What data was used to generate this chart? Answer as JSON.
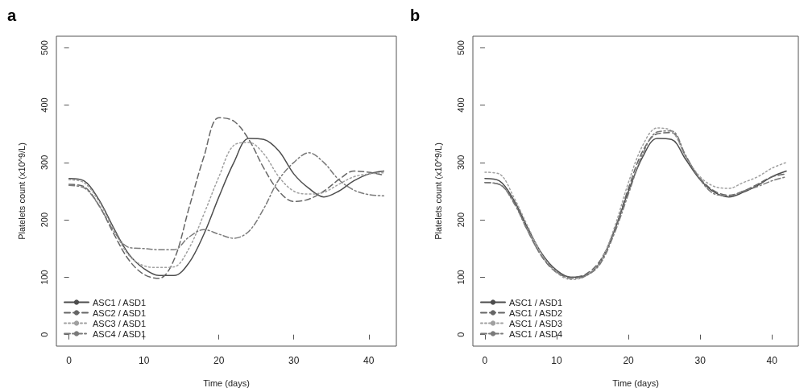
{
  "chart_data": [
    {
      "type": "line",
      "title": "a",
      "xlabel": "Time (days)",
      "ylabel": "Platelets count (x10^9/L)",
      "x": [
        0,
        2,
        4,
        6,
        8,
        10,
        12,
        14,
        16,
        18,
        20,
        22,
        24,
        26,
        28,
        30,
        32,
        34,
        36,
        38,
        40,
        42
      ],
      "xlim": [
        -1.68,
        43.68
      ],
      "xticks": [
        0,
        10,
        20,
        30,
        40
      ],
      "ylim": [
        -20,
        520
      ],
      "yticks": [
        0,
        100,
        200,
        300,
        400,
        500
      ],
      "grid": false,
      "legend": "bottom left",
      "marker": "none",
      "series": [
        {
          "name": "ASC1 / ASD1",
          "color": "#4d4d4d",
          "line_style": "solid",
          "values": [
            272,
            268,
            235,
            185,
            140,
            115,
            103,
            103,
            125,
            175,
            240,
            300,
            342,
            340,
            320,
            280,
            255,
            240,
            250,
            268,
            280,
            285
          ]
        },
        {
          "name": "ASC2 / ASD1",
          "color": "#666666",
          "line_style": "dashed",
          "values": [
            262,
            258,
            225,
            175,
            130,
            105,
            98,
            130,
            220,
            310,
            378,
            372,
            340,
            290,
            250,
            232,
            236,
            250,
            270,
            285,
            283,
            278
          ]
        },
        {
          "name": "ASC3 / ASD1",
          "color": "#a0a0a0",
          "line_style": "dotted",
          "values": [
            270,
            265,
            232,
            182,
            138,
            120,
            117,
            118,
            150,
            210,
            275,
            330,
            335,
            315,
            275,
            250,
            245,
            248,
            262,
            275,
            280,
            282
          ]
        },
        {
          "name": "ASC4 / ASD1",
          "color": "#7a7a7a",
          "line_style": "dashdot",
          "values": [
            260,
            256,
            225,
            180,
            152,
            150,
            148,
            148,
            170,
            183,
            175,
            168,
            180,
            220,
            270,
            300,
            317,
            300,
            270,
            252,
            244,
            242
          ]
        }
      ]
    },
    {
      "type": "line",
      "title": "b",
      "xlabel": "Time (days)",
      "ylabel": "Platelets count (x10^9/L)",
      "x": [
        0,
        2,
        4,
        6,
        8,
        10,
        12,
        14,
        16,
        18,
        20,
        22,
        24,
        26,
        28,
        30,
        32,
        34,
        36,
        38,
        40,
        42
      ],
      "xlim": [
        -1.68,
        43.68
      ],
      "xticks": [
        0,
        10,
        20,
        30,
        40
      ],
      "ylim": [
        -20,
        520
      ],
      "yticks": [
        0,
        100,
        200,
        300,
        400,
        500
      ],
      "grid": false,
      "legend": "bottom left",
      "marker": "none",
      "series": [
        {
          "name": "ASC1 / ASD1",
          "color": "#4d4d4d",
          "line_style": "solid",
          "values": [
            272,
            268,
            235,
            185,
            140,
            112,
            100,
            103,
            125,
            180,
            250,
            310,
            342,
            340,
            305,
            270,
            248,
            240,
            248,
            260,
            275,
            285
          ]
        },
        {
          "name": "ASC1 / ASD2",
          "color": "#666666",
          "line_style": "dashed",
          "values": [
            265,
            262,
            232,
            180,
            135,
            108,
            100,
            105,
            128,
            180,
            255,
            320,
            350,
            352,
            310,
            272,
            250,
            243,
            250,
            262,
            275,
            280
          ]
        },
        {
          "name": "ASC1 / ASD3",
          "color": "#a0a0a0",
          "line_style": "dotted",
          "values": [
            283,
            280,
            240,
            188,
            138,
            108,
            96,
            102,
            125,
            185,
            265,
            330,
            360,
            355,
            310,
            275,
            258,
            255,
            265,
            275,
            290,
            300
          ]
        },
        {
          "name": "ASC1 / ASD4",
          "color": "#7a7a7a",
          "line_style": "dashdot",
          "values": [
            265,
            262,
            230,
            180,
            135,
            110,
            98,
            102,
            122,
            175,
            245,
            315,
            353,
            355,
            312,
            270,
            245,
            242,
            250,
            258,
            268,
            275
          ]
        }
      ]
    }
  ]
}
